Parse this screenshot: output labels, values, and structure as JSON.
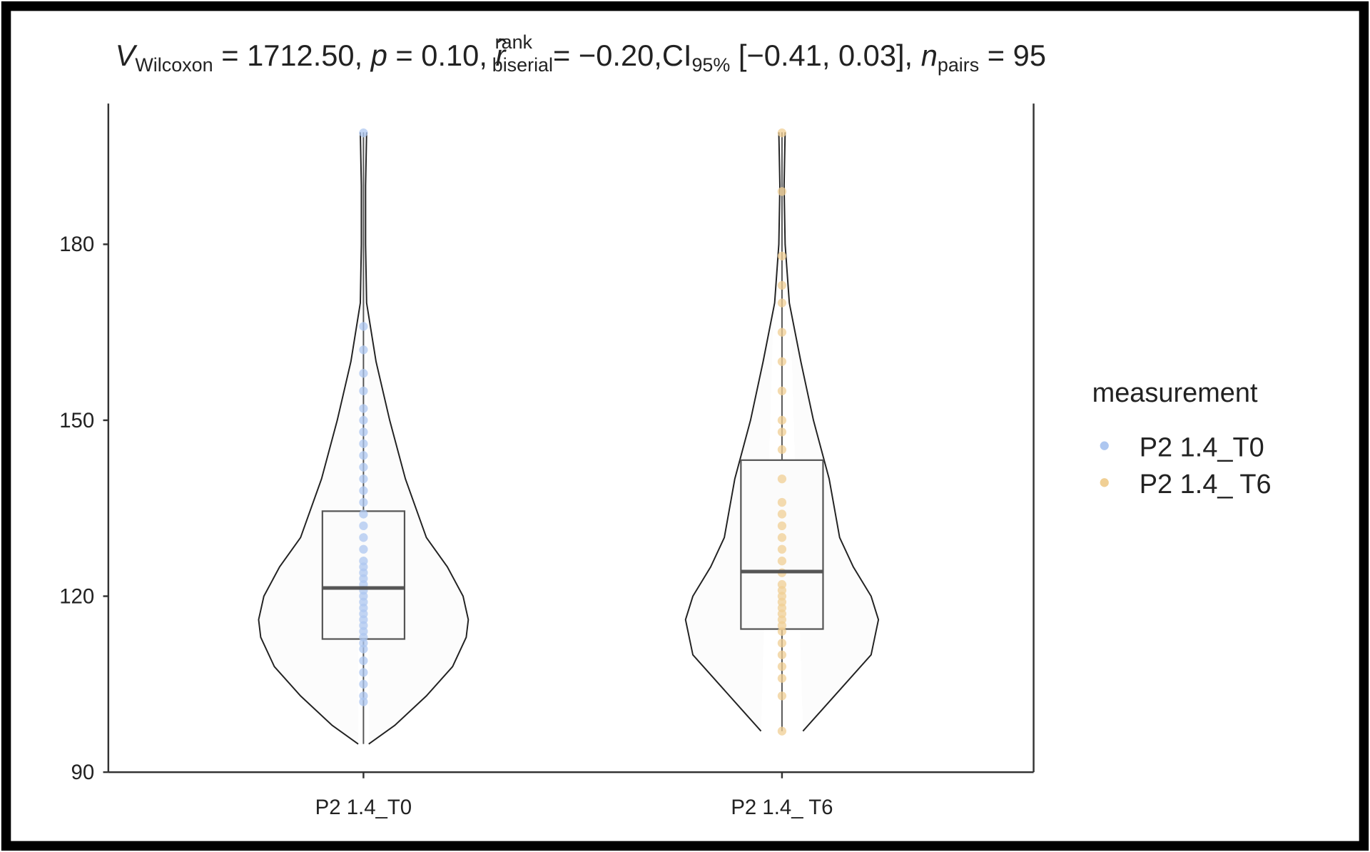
{
  "chart_data": {
    "type": "violin",
    "title_parts": [
      {
        "text": "V",
        "style": "italic"
      },
      {
        "text": "Wilcoxon",
        "style": "sub"
      },
      {
        "text": " = 1712.50, ",
        "style": "normal"
      },
      {
        "text": "p",
        "style": "italic"
      },
      {
        "text": " = 0.10, ",
        "style": "normal"
      },
      {
        "text": "r̂",
        "style": "italic"
      },
      {
        "text": "rank",
        "style": "sup"
      },
      {
        "text": "biserial",
        "style": "sub"
      },
      {
        "text": "= −0.20,CI",
        "style": "normal"
      },
      {
        "text": "95%",
        "style": "sub"
      },
      {
        "text": " [−0.41, 0.03], ",
        "style": "normal"
      },
      {
        "text": "n",
        "style": "italic"
      },
      {
        "text": "pairs",
        "style": "sub"
      },
      {
        "text": " = 95",
        "style": "normal"
      }
    ],
    "categories": [
      "P2 1.4_T0",
      "P2 1.4_ T6"
    ],
    "ylim": [
      90,
      204
    ],
    "yticks": [
      90,
      120,
      150,
      180
    ],
    "legend_title": "measurement",
    "legend_position": "right",
    "series": [
      {
        "name": "P2 1.4_T0",
        "color": "#aec7f0",
        "box": {
          "min": 94.8,
          "q1": 112.7,
          "median": 121.4,
          "q3": 134.5,
          "max": 199.1
        },
        "density": {
          "y": [
            94.8,
            98,
            103,
            108,
            113,
            116,
            120,
            125,
            130,
            140,
            150,
            160,
            170,
            180,
            190,
            199.1
          ],
          "width": [
            0.05,
            0.3,
            0.6,
            0.85,
            0.98,
            1.0,
            0.95,
            0.8,
            0.6,
            0.4,
            0.25,
            0.12,
            0.03,
            0.02,
            0.02,
            0.03
          ]
        },
        "values": [
          102,
          103,
          105,
          107,
          109,
          111,
          112,
          113,
          114,
          115,
          116,
          117,
          118,
          119,
          120,
          121,
          122,
          123,
          124,
          125,
          126,
          128,
          130,
          132,
          134,
          136,
          138,
          140,
          142,
          144,
          146,
          148,
          150,
          152,
          155,
          158,
          162,
          166,
          199
        ]
      },
      {
        "name": "P2 1.4_ T6",
        "color": "#f0cf94",
        "box": {
          "min": 97,
          "q1": 114.4,
          "median": 124.2,
          "q3": 143.2,
          "max": 199.1
        },
        "density": {
          "y": [
            97,
            100,
            105,
            110,
            116,
            120,
            125,
            130,
            140,
            150,
            160,
            170,
            180,
            190,
            199.1
          ],
          "width": [
            0.2,
            0.35,
            0.6,
            0.85,
            0.92,
            0.85,
            0.68,
            0.55,
            0.45,
            0.3,
            0.18,
            0.07,
            0.03,
            0.02,
            0.03
          ]
        },
        "values": [
          97,
          103,
          106,
          108,
          110,
          112,
          114,
          115,
          116,
          117,
          118,
          119,
          120,
          121,
          122,
          124,
          126,
          128,
          130,
          132,
          134,
          136,
          140,
          145,
          148,
          150,
          155,
          160,
          165,
          170,
          173,
          178,
          189,
          199
        ]
      }
    ]
  }
}
